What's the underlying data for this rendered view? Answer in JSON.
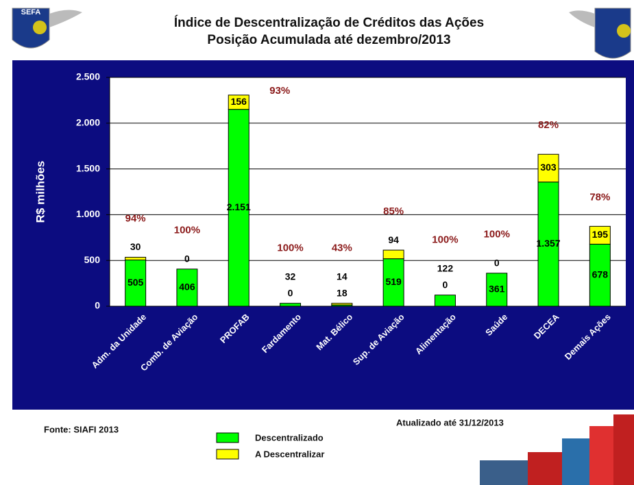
{
  "chart_data": {
    "type": "stacked_bar",
    "title": "Índice de Descentralização de Créditos das Ações",
    "subtitle": "Posição Acumulada até dezembro/2013",
    "logo_text": "SEFA",
    "y_label": "R$ milhões",
    "categories": [
      "Adm. da Unidade",
      "Comb. de Aviação",
      "PROFAB",
      "Fardamento",
      "Mat. Bélico",
      "Sup. de Aviação",
      "Alimentação",
      "Saúde",
      "DECEA",
      "Demais Ações"
    ],
    "series": [
      {
        "name": "Descentralizado",
        "color": "#00ff00",
        "values": [
          505,
          406,
          2151,
          32,
          14,
          519,
          122,
          361,
          1357,
          678
        ],
        "value_labels": [
          "505",
          "406",
          "2.151",
          "32",
          "14",
          "519",
          "122",
          "361",
          "1.357",
          "678"
        ]
      },
      {
        "name": "A Descentralizar",
        "color": "#ffff00",
        "values": [
          30,
          0,
          156,
          0,
          18,
          94,
          0,
          0,
          303,
          195
        ]
      }
    ],
    "percent_labels": [
      "94%",
      "100%",
      "93%",
      "100%",
      "43%",
      "85%",
      "100%",
      "100%",
      "82%",
      "78%"
    ],
    "ylim": [
      0,
      2500
    ],
    "yticks": [
      0,
      500,
      {
        "value": 1000,
        "label": "1.000"
      },
      {
        "value": 1500,
        "label": "1.500"
      },
      {
        "value": 2000,
        "label": "2.000"
      },
      {
        "value": 2500,
        "label": "2.500"
      }
    ],
    "grid": true,
    "legend": "bottom",
    "source": "Fonte:  SIAFI 2013",
    "updated": "Atualizado até 31/12/2013"
  }
}
